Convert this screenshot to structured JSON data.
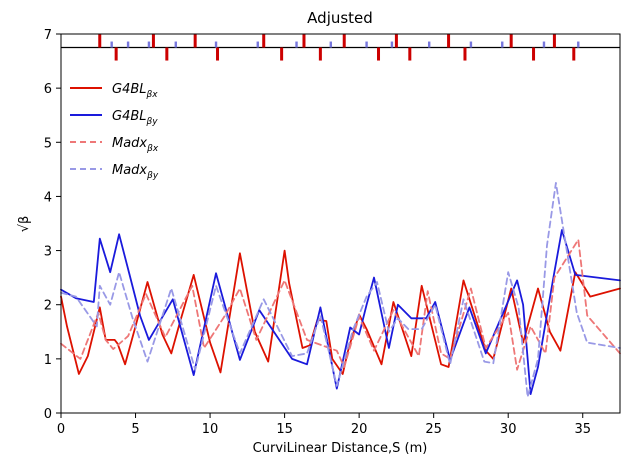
{
  "chart_data": {
    "type": "line",
    "title": "Adjusted",
    "xlabel": "CurviLinear Distance,S (m)",
    "ylabel": "√β",
    "xlim": [
      0,
      37.5
    ],
    "ylim": [
      0,
      7
    ],
    "xticks": [
      0,
      5,
      10,
      15,
      20,
      25,
      30,
      35
    ],
    "yticks": [
      0,
      1,
      2,
      3,
      4,
      5,
      6,
      7
    ],
    "grid": false,
    "legend_position": "top-left",
    "series": [
      {
        "name": "G4BL_βx",
        "legend_main": "G4BL",
        "legend_sub": "βx",
        "color": "#dd1100",
        "dash": false,
        "x": [
          0,
          0.4,
          1.2,
          1.8,
          2.6,
          3.0,
          3.6,
          3.8,
          4.3,
          5.0,
          5.8,
          6.8,
          7.4,
          8.0,
          8.9,
          10.0,
          10.7,
          12.0,
          13.0,
          13.9,
          15.0,
          15.3,
          16.2,
          16.7,
          17.2,
          17.8,
          18.2,
          18.9,
          19.3,
          20.0,
          20.5,
          21.5,
          22.3,
          23.5,
          24.2,
          25.5,
          26.0,
          27.0,
          28.5,
          29.0,
          30.2,
          31.0,
          31.5,
          32.0,
          32.8,
          33.5,
          34.5,
          35.5,
          37.5
        ],
        "y": [
          2.15,
          1.6,
          0.72,
          1.05,
          1.95,
          1.35,
          1.35,
          1.28,
          0.9,
          1.6,
          2.42,
          1.45,
          1.1,
          1.7,
          2.55,
          1.3,
          0.75,
          2.95,
          1.5,
          0.95,
          3.0,
          2.4,
          1.2,
          1.25,
          1.72,
          1.7,
          1.0,
          0.72,
          1.2,
          1.82,
          1.55,
          0.9,
          2.05,
          1.05,
          2.35,
          0.9,
          0.85,
          2.45,
          1.15,
          1.0,
          2.3,
          1.3,
          1.8,
          2.3,
          1.5,
          1.15,
          2.6,
          2.15,
          2.3
        ]
      },
      {
        "name": "G4BL_βy",
        "legend_main": "G4BL",
        "legend_sub": "βy",
        "color": "#1a1adc",
        "dash": false,
        "x": [
          0,
          1.0,
          2.2,
          2.6,
          3.3,
          3.9,
          4.6,
          5.3,
          5.9,
          7.5,
          8.9,
          10.4,
          12.0,
          13.3,
          15.5,
          16.5,
          17.4,
          18.5,
          19.4,
          20.0,
          20.5,
          21.0,
          22.0,
          22.6,
          23.5,
          24.5,
          25.1,
          26.1,
          27.4,
          28.5,
          30.6,
          31.0,
          31.5,
          32.0,
          33.0,
          33.6,
          34.5,
          37.5
        ],
        "y": [
          2.28,
          2.12,
          2.05,
          3.22,
          2.6,
          3.3,
          2.55,
          1.8,
          1.35,
          2.1,
          0.7,
          2.58,
          0.98,
          1.9,
          1.0,
          0.9,
          1.95,
          0.45,
          1.58,
          1.45,
          2.0,
          2.5,
          1.2,
          2.0,
          1.75,
          1.75,
          2.05,
          0.98,
          1.95,
          1.1,
          2.45,
          2.0,
          0.35,
          0.85,
          2.45,
          3.38,
          2.55,
          2.45
        ]
      },
      {
        "name": "Madx_βx",
        "legend_main": "Madx",
        "legend_sub": "βx",
        "color": "#ee7777",
        "dash": true,
        "x": [
          0,
          1.3,
          2.5,
          3.0,
          3.5,
          4.5,
          5.7,
          7.0,
          8.8,
          9.6,
          11.0,
          12.0,
          13.1,
          15.0,
          16.5,
          18.5,
          19.0,
          20.0,
          21.0,
          22.3,
          24.0,
          24.6,
          25.5,
          26.1,
          27.5,
          28.5,
          30.0,
          30.6,
          31.5,
          32.5,
          33.1,
          34.7,
          35.3,
          37.5
        ],
        "y": [
          1.28,
          1.0,
          1.85,
          1.35,
          1.18,
          1.42,
          2.2,
          1.4,
          2.35,
          1.2,
          1.8,
          2.3,
          1.35,
          2.45,
          1.35,
          1.15,
          0.85,
          1.78,
          1.15,
          1.9,
          1.05,
          2.25,
          1.1,
          1.0,
          2.3,
          1.2,
          1.85,
          0.8,
          1.6,
          1.1,
          2.5,
          3.2,
          1.8,
          1.1
        ]
      },
      {
        "name": "Madx_βy",
        "legend_main": "Madx",
        "legend_sub": "βy",
        "color": "#9999e6",
        "dash": true,
        "x": [
          0,
          1.0,
          2.4,
          2.6,
          3.3,
          3.9,
          4.8,
          5.8,
          7.4,
          9.0,
          10.4,
          12.0,
          13.6,
          15.5,
          16.5,
          17.4,
          18.5,
          19.6,
          20.5,
          21.2,
          22.0,
          22.6,
          23.3,
          24.2,
          25.1,
          26.1,
          27.0,
          28.4,
          29.0,
          30.0,
          30.7,
          31.3,
          32.0,
          32.6,
          33.2,
          34.6,
          35.3,
          37.5
        ],
        "y": [
          2.22,
          2.15,
          1.6,
          2.35,
          2.0,
          2.6,
          1.75,
          0.95,
          2.3,
          0.8,
          2.35,
          1.1,
          2.1,
          1.05,
          1.1,
          1.8,
          0.5,
          1.55,
          2.15,
          2.42,
          1.5,
          1.75,
          1.55,
          1.55,
          2.0,
          0.9,
          2.1,
          0.95,
          0.92,
          2.6,
          1.95,
          0.3,
          1.0,
          3.1,
          4.25,
          1.85,
          1.3,
          1.2
        ]
      }
    ],
    "lattice": {
      "baseline": 6.75,
      "red_elements": [
        2.6,
        3.7,
        6.2,
        7.1,
        9.0,
        10.5,
        13.6,
        14.8,
        16.3,
        17.4,
        19.0,
        21.3,
        22.5,
        23.4,
        26.0,
        27.1,
        30.2,
        31.7,
        33.1,
        34.4
      ],
      "blue_elements": [
        3.4,
        4.5,
        5.9,
        7.7,
        10.4,
        13.2,
        15.8,
        18.1,
        20.5,
        22.2,
        24.7,
        27.5,
        29.6,
        32.4,
        34.7
      ]
    }
  }
}
